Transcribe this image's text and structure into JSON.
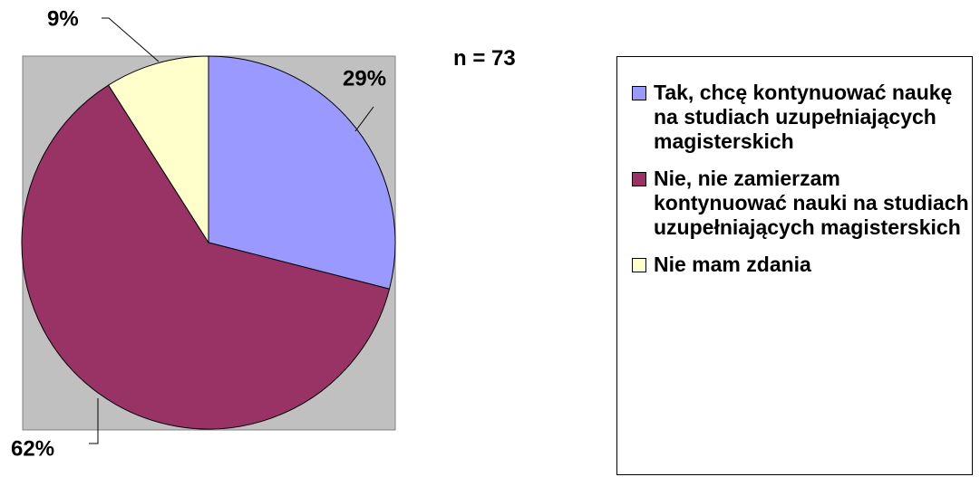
{
  "chart_data": {
    "type": "pie",
    "annotation": "n = 73",
    "categories": [
      "Tak, chcę kontynuować naukę na studiach uzupełniających magisterskich",
      "Nie, nie zamierzam kontynuować nauki na studiach uzupełniających magisterskich",
      "Nie mam zdania"
    ],
    "values": [
      29,
      62,
      9
    ],
    "value_labels": [
      "29%",
      "62%",
      "9%"
    ],
    "colors": [
      "#9999ff",
      "#993366",
      "#ffffcc"
    ],
    "legend": "right"
  }
}
